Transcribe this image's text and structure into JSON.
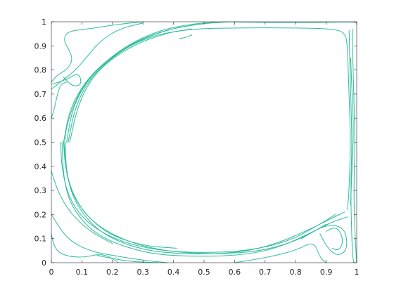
{
  "chart_data": {
    "type": "line",
    "title": "",
    "xlabel": "",
    "ylabel": "",
    "xlim": [
      0,
      1
    ],
    "ylim": [
      0,
      1
    ],
    "grid": false,
    "xticks": [
      "0",
      "0.1",
      "0.2",
      "0.3",
      "0.4",
      "0.5",
      "0.6",
      "0.7",
      "0.8",
      "0.9",
      "1"
    ],
    "yticks": [
      "0",
      "0.1",
      "0.2",
      "0.3",
      "0.4",
      "0.5",
      "0.6",
      "0.7",
      "0.8",
      "0.9",
      "1"
    ],
    "color": "#2dbd9b",
    "series": [
      {
        "points": [
          [
            0.41,
            0.06
          ],
          [
            0.3,
            0.07
          ],
          [
            0.18,
            0.12
          ],
          [
            0.09,
            0.23
          ],
          [
            0.05,
            0.35
          ],
          [
            0.04,
            0.5
          ],
          [
            0.06,
            0.62
          ],
          [
            0.11,
            0.75
          ],
          [
            0.2,
            0.86
          ],
          [
            0.32,
            0.94
          ],
          [
            0.45,
            0.97
          ],
          [
            0.6,
            0.975
          ],
          [
            0.8,
            0.975
          ],
          [
            0.93,
            0.97
          ],
          [
            0.965,
            0.95
          ],
          [
            0.97,
            0.88
          ]
        ]
      },
      {
        "points": [
          [
            0.045,
            0.5
          ],
          [
            0.05,
            0.36
          ],
          [
            0.08,
            0.24
          ],
          [
            0.16,
            0.12
          ],
          [
            0.3,
            0.05
          ],
          [
            0.45,
            0.035
          ],
          [
            0.6,
            0.04
          ],
          [
            0.72,
            0.07
          ],
          [
            0.85,
            0.14
          ],
          [
            0.91,
            0.18
          ],
          [
            0.96,
            0.21
          ]
        ]
      },
      {
        "points": [
          [
            0.035,
            0.5
          ],
          [
            0.04,
            0.34
          ],
          [
            0.07,
            0.22
          ],
          [
            0.15,
            0.11
          ],
          [
            0.3,
            0.04
          ],
          [
            0.45,
            0.025
          ],
          [
            0.62,
            0.03
          ],
          [
            0.74,
            0.06
          ],
          [
            0.86,
            0.13
          ],
          [
            0.92,
            0.17
          ],
          [
            0.97,
            0.19
          ]
        ]
      },
      {
        "points": [
          [
            0.03,
            0.5
          ],
          [
            0.035,
            0.38
          ],
          [
            0.06,
            0.26
          ],
          [
            0.12,
            0.16
          ],
          [
            0.22,
            0.09
          ],
          [
            0.35,
            0.05
          ],
          [
            0.5,
            0.04
          ],
          [
            0.65,
            0.05
          ],
          [
            0.78,
            0.09
          ],
          [
            0.88,
            0.16
          ],
          [
            0.93,
            0.2
          ]
        ]
      },
      {
        "points": [
          [
            0.04,
            0.5
          ],
          [
            0.06,
            0.64
          ],
          [
            0.12,
            0.77
          ],
          [
            0.22,
            0.88
          ],
          [
            0.34,
            0.955
          ],
          [
            0.47,
            0.99
          ],
          [
            0.58,
            1.0
          ]
        ]
      },
      {
        "points": [
          [
            0.05,
            0.5
          ],
          [
            0.07,
            0.65
          ],
          [
            0.13,
            0.78
          ],
          [
            0.23,
            0.89
          ],
          [
            0.35,
            0.965
          ],
          [
            0.48,
            0.995
          ],
          [
            0.58,
            1.0
          ]
        ]
      },
      {
        "points": [
          [
            0.055,
            0.5
          ],
          [
            0.08,
            0.66
          ],
          [
            0.14,
            0.79
          ],
          [
            0.25,
            0.9
          ],
          [
            0.37,
            0.965
          ],
          [
            0.48,
            0.99
          ]
        ]
      },
      {
        "points": [
          [
            0.06,
            0.5
          ],
          [
            0.09,
            0.67
          ],
          [
            0.15,
            0.8
          ],
          [
            0.26,
            0.9
          ],
          [
            0.38,
            0.955
          ],
          [
            0.46,
            0.97
          ]
        ]
      },
      {
        "points": [
          [
            0.04,
            0.5
          ],
          [
            0.045,
            0.4
          ],
          [
            0.07,
            0.28
          ],
          [
            0.13,
            0.17
          ],
          [
            0.24,
            0.09
          ],
          [
            0.38,
            0.045
          ],
          [
            0.55,
            0.035
          ],
          [
            0.7,
            0.05
          ],
          [
            0.82,
            0.1
          ],
          [
            0.9,
            0.16
          ]
        ]
      },
      {
        "points": [
          [
            0.97,
            0.88
          ],
          [
            0.975,
            0.7
          ],
          [
            0.98,
            0.5
          ],
          [
            0.975,
            0.3
          ],
          [
            0.97,
            0.22
          ]
        ]
      },
      {
        "points": [
          [
            0.985,
            0.97
          ],
          [
            0.99,
            0.7
          ],
          [
            0.995,
            0.5
          ],
          [
            0.99,
            0.3
          ],
          [
            0.995,
            0.1
          ],
          [
            1.0,
            0.0
          ]
        ]
      },
      {
        "points": [
          [
            0.975,
            0.965
          ],
          [
            0.98,
            0.7
          ],
          [
            0.985,
            0.5
          ],
          [
            0.98,
            0.3
          ],
          [
            0.985,
            0.05
          ],
          [
            0.99,
            0.0
          ]
        ]
      },
      {
        "points": [
          [
            0.58,
            1.0
          ],
          [
            0.8,
            0.995
          ],
          [
            0.99,
            1.0
          ],
          [
            1.0,
            0.995
          ]
        ]
      },
      {
        "points": [
          [
            0.0,
            0.75
          ],
          [
            0.02,
            0.78
          ],
          [
            0.05,
            0.8
          ],
          [
            0.07,
            0.84
          ],
          [
            0.06,
            0.88
          ],
          [
            0.04,
            0.92
          ],
          [
            0.05,
            0.96
          ],
          [
            0.12,
            0.97
          ],
          [
            0.22,
            0.99
          ],
          [
            0.3,
            1.0
          ]
        ]
      },
      {
        "points": [
          [
            0.0,
            0.72
          ],
          [
            0.04,
            0.76
          ],
          [
            0.08,
            0.8
          ],
          [
            0.12,
            0.86
          ],
          [
            0.16,
            0.92
          ],
          [
            0.22,
            0.97
          ],
          [
            0.3,
            0.995
          ]
        ]
      },
      {
        "points": [
          [
            0.0,
            0.74
          ],
          [
            0.05,
            0.76
          ],
          [
            0.09,
            0.79
          ],
          [
            0.1,
            0.74
          ],
          [
            0.07,
            0.73
          ],
          [
            0.04,
            0.77
          ]
        ]
      },
      {
        "points": [
          [
            0.0,
            0.6
          ],
          [
            0.01,
            0.64
          ],
          [
            0.02,
            0.7
          ],
          [
            0.03,
            0.74
          ],
          [
            0.05,
            0.75
          ]
        ]
      },
      {
        "points": [
          [
            0.0,
            0.38
          ],
          [
            0.02,
            0.3
          ],
          [
            0.05,
            0.23
          ],
          [
            0.09,
            0.17
          ],
          [
            0.14,
            0.12
          ],
          [
            0.2,
            0.08
          ]
        ]
      },
      {
        "points": [
          [
            0.0,
            0.12
          ],
          [
            0.01,
            0.06
          ],
          [
            0.04,
            0.03
          ],
          [
            0.1,
            0.02
          ],
          [
            0.17,
            0.04
          ],
          [
            0.22,
            0.0
          ]
        ]
      },
      {
        "points": [
          [
            0.0,
            0.2
          ],
          [
            0.05,
            0.1
          ],
          [
            0.12,
            0.05
          ],
          [
            0.2,
            0.03
          ],
          [
            0.3,
            0.01
          ],
          [
            0.38,
            0.0
          ]
        ]
      },
      {
        "points": [
          [
            0.15,
            0.03
          ],
          [
            0.25,
            0.005
          ],
          [
            0.35,
            0.0
          ]
        ]
      },
      {
        "points": [
          [
            0.6,
            0.0
          ],
          [
            0.7,
            0.02
          ],
          [
            0.8,
            0.05
          ],
          [
            0.86,
            0.09
          ],
          [
            0.88,
            0.02
          ],
          [
            0.9,
            0.0
          ]
        ]
      },
      {
        "points": [
          [
            0.82,
            0.1
          ],
          [
            0.87,
            0.14
          ],
          [
            0.92,
            0.16
          ],
          [
            0.96,
            0.14
          ],
          [
            0.97,
            0.08
          ],
          [
            0.96,
            0.04
          ],
          [
            0.93,
            0.03
          ],
          [
            0.9,
            0.07
          ],
          [
            0.88,
            0.12
          ]
        ]
      },
      {
        "points": [
          [
            0.9,
            0.13
          ],
          [
            0.93,
            0.15
          ],
          [
            0.95,
            0.12
          ],
          [
            0.955,
            0.08
          ],
          [
            0.94,
            0.05
          ],
          [
            0.92,
            0.06
          ]
        ]
      },
      {
        "points": [
          [
            0.98,
            0.24
          ],
          [
            0.985,
            0.4
          ],
          [
            0.99,
            0.55
          ],
          [
            0.985,
            0.7
          ],
          [
            0.98,
            0.85
          ]
        ]
      },
      {
        "points": [
          [
            0.42,
            0.93
          ],
          [
            0.44,
            0.935
          ],
          [
            0.46,
            0.945
          ]
        ]
      }
    ]
  }
}
